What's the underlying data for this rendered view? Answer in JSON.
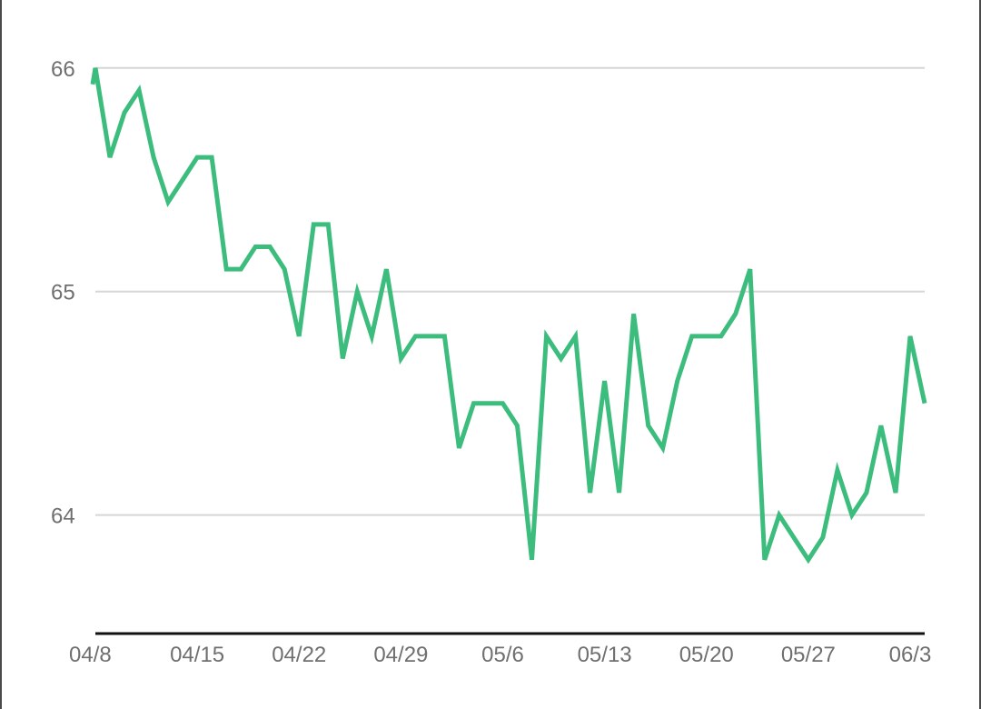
{
  "chart_data": {
    "type": "line",
    "title": "",
    "xlabel": "",
    "ylabel": "",
    "colors": {
      "series": "#3dbd7d",
      "grid": "#d6d6d6",
      "axis": "#111111",
      "tick_text": "#6f6f6f"
    },
    "grid": true,
    "legend": "none",
    "ylim": [
      63.47,
      66.06
    ],
    "xlim": [
      "2025-04-08",
      "2025-06-04"
    ],
    "y_ticks": [
      {
        "value": 64,
        "label": "64"
      },
      {
        "value": 65,
        "label": "65"
      },
      {
        "value": 66,
        "label": "66"
      }
    ],
    "x_ticks": [
      {
        "value": "2025-04-08",
        "label": "04/8"
      },
      {
        "value": "2025-04-15",
        "label": "04/15"
      },
      {
        "value": "2025-04-22",
        "label": "04/22"
      },
      {
        "value": "2025-04-29",
        "label": "04/29"
      },
      {
        "value": "2025-05-06",
        "label": "05/6"
      },
      {
        "value": "2025-05-13",
        "label": "05/13"
      },
      {
        "value": "2025-05-20",
        "label": "05/20"
      },
      {
        "value": "2025-05-27",
        "label": "05/27"
      },
      {
        "value": "2025-06-03",
        "label": "06/3"
      }
    ],
    "series": [
      {
        "x": [
          "2025-04-08",
          "2025-04-09",
          "2025-04-10",
          "2025-04-11",
          "2025-04-12",
          "2025-04-13",
          "2025-04-14",
          "2025-04-15",
          "2025-04-16",
          "2025-04-17",
          "2025-04-18",
          "2025-04-19",
          "2025-04-20",
          "2025-04-21",
          "2025-04-22",
          "2025-04-23",
          "2025-04-24",
          "2025-04-25",
          "2025-04-26",
          "2025-04-27",
          "2025-04-28",
          "2025-04-29",
          "2025-04-30",
          "2025-05-01",
          "2025-05-02",
          "2025-05-03",
          "2025-05-04",
          "2025-05-05",
          "2025-05-06",
          "2025-05-07",
          "2025-05-08",
          "2025-05-09",
          "2025-05-10",
          "2025-05-11",
          "2025-05-12",
          "2025-05-13",
          "2025-05-14",
          "2025-05-15",
          "2025-05-16",
          "2025-05-17",
          "2025-05-18",
          "2025-05-19",
          "2025-05-20",
          "2025-05-21",
          "2025-05-22",
          "2025-05-23",
          "2025-05-24",
          "2025-05-25",
          "2025-05-26",
          "2025-05-27",
          "2025-05-28",
          "2025-05-29",
          "2025-05-30",
          "2025-05-31",
          "2025-06-01",
          "2025-06-02",
          "2025-06-03",
          "2025-06-04"
        ],
        "values": [
          66.0,
          65.6,
          65.8,
          65.9,
          65.6,
          65.4,
          65.5,
          65.6,
          65.6,
          65.1,
          65.1,
          65.2,
          65.2,
          65.1,
          64.8,
          65.3,
          65.3,
          64.7,
          65.0,
          64.8,
          65.1,
          64.7,
          64.8,
          64.8,
          64.8,
          64.3,
          64.5,
          64.5,
          64.5,
          64.4,
          63.8,
          64.8,
          64.7,
          64.8,
          64.1,
          64.6,
          64.1,
          64.9,
          64.4,
          64.3,
          64.6,
          64.8,
          64.8,
          64.8,
          64.9,
          65.1,
          63.8,
          64.0,
          63.9,
          63.8,
          63.9,
          64.2,
          64.0,
          64.1,
          64.4,
          64.1,
          64.8,
          64.5
        ]
      }
    ]
  }
}
